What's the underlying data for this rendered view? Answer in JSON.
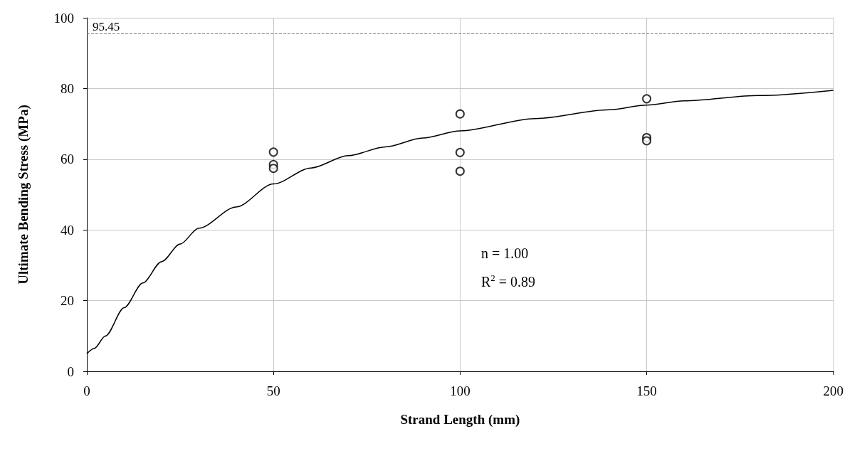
{
  "chart_data": {
    "type": "scatter",
    "xlabel": "Strand Length (mm)",
    "ylabel": "Ultimate Bending Stress (MPa)",
    "xlim": [
      0,
      200
    ],
    "xticks": [
      0,
      50,
      100,
      150,
      200
    ],
    "ylim": [
      0,
      100
    ],
    "yticks": [
      0,
      20,
      40,
      60,
      80,
      100
    ],
    "grid": true,
    "series": [
      {
        "marker": "circle",
        "color": "#000000",
        "x": [
          50,
          50,
          50,
          100,
          100,
          100,
          150,
          150,
          150
        ],
        "values": [
          62.0,
          58.5,
          57.4,
          72.8,
          61.9,
          56.6,
          77.1,
          66.1,
          65.2
        ]
      },
      {
        "type": "line",
        "marker": "none",
        "line_style": "solid",
        "color": "#000000",
        "x": [
          0,
          2,
          5,
          10,
          15,
          20,
          25,
          30,
          40,
          50,
          60,
          70,
          80,
          90,
          100,
          120,
          140,
          150,
          160,
          180,
          200
        ],
        "values": [
          5,
          6.5,
          10,
          18,
          25,
          31,
          36,
          40.5,
          46.5,
          53,
          57.5,
          61,
          63.5,
          66,
          68,
          71.5,
          74,
          75.3,
          76.5,
          78,
          79.5
        ]
      }
    ],
    "ref_lines": [
      {
        "axis": "y",
        "value": 95.45,
        "label": "95.45",
        "color": "#808080",
        "line_style": "dashed"
      }
    ],
    "annotations": [
      "n = 1.00",
      "R$^{2}$ = 0.89"
    ]
  }
}
